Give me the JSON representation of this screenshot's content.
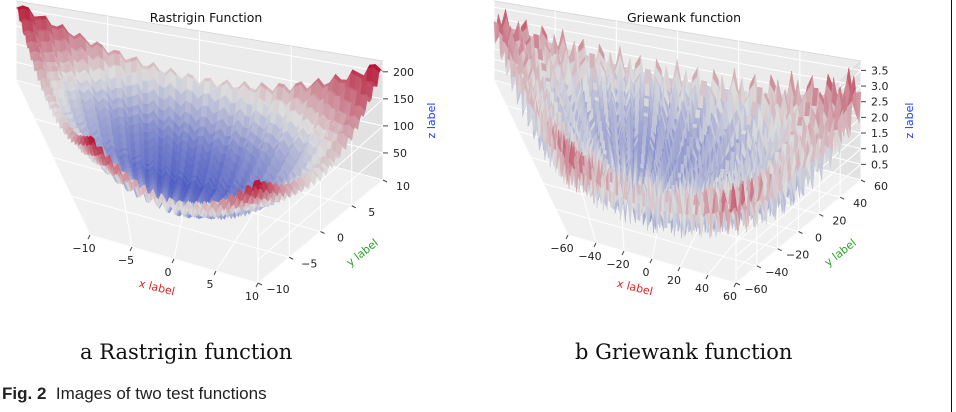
{
  "figure_caption": {
    "label": "Fig. 2",
    "text": "Images of two test functions"
  },
  "subcaptions": [
    "a  Rastrigin function",
    "b  Griewank function"
  ],
  "colors": {
    "xlabel": "#d62728",
    "ylabel": "#2ca02c",
    "zlabel": "#1f3cff",
    "cmap_low": "#3b4cc0",
    "cmap_mid": "#dddddd",
    "cmap_high": "#b40426"
  },
  "chart_data": [
    {
      "type": "surface",
      "function": "rastrigin",
      "title": "Rastrigin Function",
      "xlabel": "x label",
      "ylabel": "y label",
      "zlabel": "z label",
      "xlim": [
        -10,
        10
      ],
      "ylim": [
        -10,
        10
      ],
      "zlim": [
        0,
        220
      ],
      "x_ticks": [
        -10,
        -5,
        0,
        5,
        10
      ],
      "y_ticks": [
        -10,
        -5,
        0,
        5,
        10
      ],
      "z_ticks": [
        50,
        100,
        150,
        200
      ],
      "colormap": "coolwarm",
      "grid": true
    },
    {
      "type": "surface",
      "function": "griewank",
      "title": "Griewank function",
      "xlabel": "x label",
      "ylabel": "y label",
      "zlabel": "z label",
      "xlim": [
        -60,
        60
      ],
      "ylim": [
        -60,
        60
      ],
      "zlim": [
        0,
        3.8
      ],
      "x_ticks": [
        -60,
        -40,
        -20,
        0,
        20,
        40,
        60
      ],
      "y_ticks": [
        -60,
        -40,
        -20,
        0,
        20,
        40,
        60
      ],
      "z_ticks": [
        0.5,
        1.0,
        1.5,
        2.0,
        2.5,
        3.0,
        3.5
      ],
      "z_tick_labels": [
        "0.5",
        "1.0",
        "1.5",
        "2.0",
        "2.5",
        "3.0",
        "3.5"
      ],
      "colormap": "coolwarm",
      "grid": true
    }
  ]
}
